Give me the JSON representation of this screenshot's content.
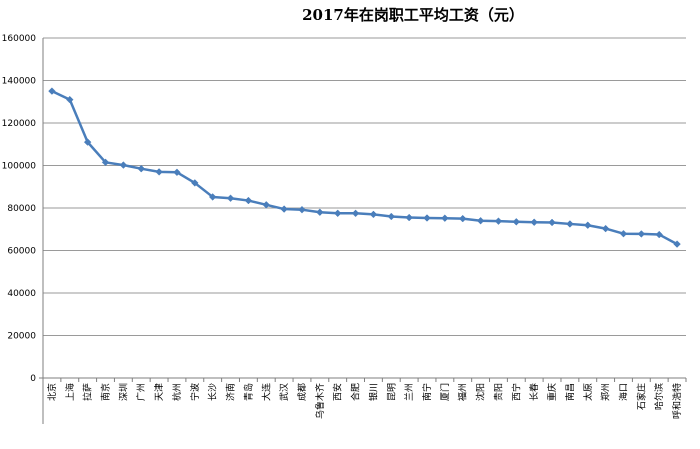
{
  "chart_data": {
    "type": "line",
    "title": "2017年在岗职工平均工资（元）",
    "xlabel": "",
    "ylabel": "",
    "ylim": [
      0,
      160000
    ],
    "yticks": [
      0,
      20000,
      40000,
      60000,
      80000,
      100000,
      120000,
      140000,
      160000
    ],
    "grid": true,
    "legend": "none",
    "colors": {
      "line": "#4a7ebb",
      "marker": "#4a7ebb",
      "grid": "#9a9a9a"
    },
    "categories": [
      "北京",
      "上海",
      "拉萨",
      "南京",
      "深圳",
      "广州",
      "天津",
      "杭州",
      "宁波",
      "长沙",
      "济南",
      "青岛",
      "大连",
      "武汉",
      "成都",
      "乌鲁木齐",
      "西安",
      "合肥",
      "银川",
      "昆明",
      "兰州",
      "南宁",
      "厦门",
      "福州",
      "沈阳",
      "贵阳",
      "西宁",
      "长春",
      "重庆",
      "南昌",
      "太原",
      "郑州",
      "海口",
      "石家庄",
      "哈尔滨",
      "呼和浩特"
    ],
    "values": [
      135000,
      131000,
      111000,
      101500,
      100200,
      98500,
      97000,
      96800,
      91800,
      85200,
      84600,
      83500,
      81500,
      79500,
      79200,
      78000,
      77500,
      77500,
      77000,
      76000,
      75500,
      75300,
      75200,
      75000,
      74000,
      73800,
      73500,
      73300,
      73200,
      72500,
      71900,
      70300,
      67900,
      67800,
      67500,
      63000
    ]
  }
}
